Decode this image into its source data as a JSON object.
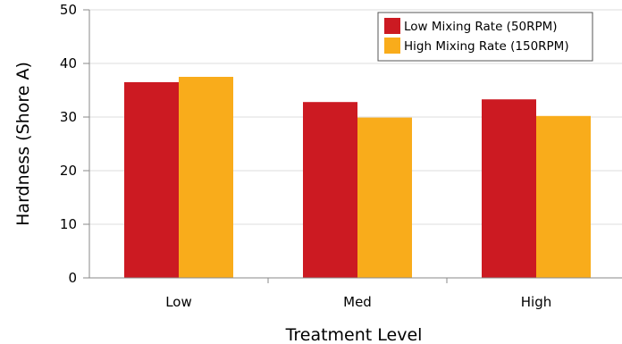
{
  "chart_data": {
    "type": "bar",
    "categories": [
      "Low",
      "Med",
      "High"
    ],
    "series": [
      {
        "name": "Low Mixing Rate (50RPM)",
        "values": [
          36.5,
          32.8,
          33.3
        ],
        "color": "#cc1a22"
      },
      {
        "name": "High Mixing Rate (150RPM)",
        "values": [
          37.5,
          29.9,
          30.2
        ],
        "color": "#f9ac1b"
      }
    ],
    "xlabel": "Treatment Level",
    "ylabel": "Hardness (Shore A)",
    "ylim": [
      0,
      50
    ],
    "yticks": [
      "0",
      "10",
      "20",
      "30",
      "40",
      "50"
    ],
    "grid": true,
    "legend_position": "top-right"
  }
}
